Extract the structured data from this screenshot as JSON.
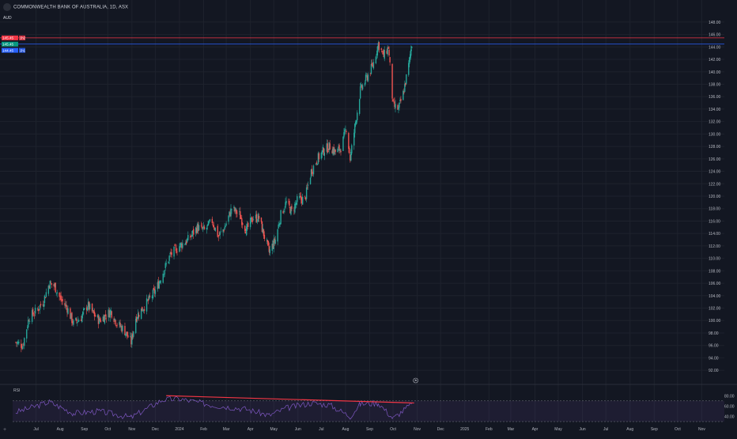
{
  "header": {
    "title": "COMMONWEALTH BANK OF AUSTRALIA, 1D, ASX",
    "currency": "AUD"
  },
  "rsi_label": "RSI",
  "colors": {
    "background": "#131722",
    "up": "#26a69a",
    "down": "#ef5350",
    "rsi_line": "#7e57c2",
    "trendline": "#f23645",
    "hline_red": "#f23645",
    "hline_blue": "#2962ff",
    "price_tag_red": "#f23645",
    "price_tag_green": "#089981",
    "price_tag_blue": "#2962ff"
  },
  "chart_data": [
    {
      "type": "candlestick",
      "title": "COMMONWEALTH BANK OF AUSTRALIA, 1D, ASX",
      "ylabel": "AUD",
      "ylim": [
        91,
        149
      ],
      "y_ticks": [
        92.0,
        94.0,
        96.0,
        98.0,
        100.0,
        102.0,
        104.0,
        106.0,
        108.0,
        110.0,
        112.0,
        114.0,
        116.0,
        118.0,
        120.0,
        122.0,
        124.0,
        126.0,
        128.0,
        130.0,
        132.0,
        134.0,
        136.0,
        138.0,
        140.0,
        142.0,
        144.0,
        146.0,
        148.0
      ],
      "x_labels": [
        "Jul",
        "Aug",
        "Sep",
        "Oct",
        "Nov",
        "Dec",
        "2024",
        "Feb",
        "Mar",
        "Apr",
        "May",
        "Jun",
        "Jul",
        "Aug",
        "Sep",
        "Oct",
        "Nov",
        "Dec",
        "2025",
        "Feb",
        "Mar",
        "Apr",
        "May",
        "Jun",
        "Jul",
        "Aug",
        "Sep",
        "Oct",
        "Nov"
      ],
      "x_range_start": "2023-06-01",
      "x_range_end": "2025-11-30",
      "price_tags": [
        {
          "label": "145.45",
          "value": 145.45,
          "color": "red"
        },
        {
          "label": "145.45",
          "value": 144.45,
          "color": "green"
        },
        {
          "label": "144.45",
          "value": 143.45,
          "color": "blue"
        }
      ],
      "price_tag_suffixes": [
        "1h2",
        "",
        "1h1"
      ],
      "horizontal_lines": [
        {
          "value": 145.45,
          "color": "red"
        },
        {
          "value": 144.45,
          "color": "blue"
        }
      ],
      "close_path": [
        [
          "2023-06-05",
          96.5
        ],
        [
          "2023-06-14",
          96.0
        ],
        [
          "2023-06-22",
          100.5
        ],
        [
          "2023-07-01",
          101.5
        ],
        [
          "2023-07-10",
          103.0
        ],
        [
          "2023-07-18",
          106.0
        ],
        [
          "2023-07-25",
          105.5
        ],
        [
          "2023-08-01",
          103.5
        ],
        [
          "2023-08-10",
          102.0
        ],
        [
          "2023-08-18",
          99.5
        ],
        [
          "2023-08-28",
          100.5
        ],
        [
          "2023-09-05",
          102.5
        ],
        [
          "2023-09-13",
          101.0
        ],
        [
          "2023-09-20",
          100.0
        ],
        [
          "2023-09-28",
          100.8
        ],
        [
          "2023-10-05",
          101.5
        ],
        [
          "2023-10-13",
          99.5
        ],
        [
          "2023-10-22",
          98.5
        ],
        [
          "2023-10-31",
          96.5
        ],
        [
          "2023-11-06",
          100.5
        ],
        [
          "2023-11-15",
          102.0
        ],
        [
          "2023-11-24",
          103.5
        ],
        [
          "2023-12-02",
          105.0
        ],
        [
          "2023-12-10",
          107.5
        ],
        [
          "2023-12-20",
          110.5
        ],
        [
          "2024-01-01",
          112.0
        ],
        [
          "2024-01-12",
          113.0
        ],
        [
          "2024-01-24",
          115.0
        ],
        [
          "2024-02-02",
          114.5
        ],
        [
          "2024-02-12",
          116.0
        ],
        [
          "2024-02-20",
          113.5
        ],
        [
          "2024-02-28",
          115.0
        ],
        [
          "2024-03-08",
          118.0
        ],
        [
          "2024-03-18",
          117.0
        ],
        [
          "2024-03-27",
          114.5
        ],
        [
          "2024-04-04",
          116.5
        ],
        [
          "2024-04-12",
          116.5
        ],
        [
          "2024-04-19",
          113.5
        ],
        [
          "2024-04-25",
          111.0
        ],
        [
          "2024-05-03",
          113.0
        ],
        [
          "2024-05-10",
          117.0
        ],
        [
          "2024-05-17",
          119.0
        ],
        [
          "2024-05-24",
          117.5
        ],
        [
          "2024-06-01",
          119.5
        ],
        [
          "2024-06-10",
          119.5
        ],
        [
          "2024-06-18",
          124.0
        ],
        [
          "2024-06-26",
          126.0
        ],
        [
          "2024-07-05",
          127.5
        ],
        [
          "2024-07-12",
          128.0
        ],
        [
          "2024-07-20",
          127.0
        ],
        [
          "2024-07-27",
          128.0
        ],
        [
          "2024-08-02",
          131.0
        ],
        [
          "2024-08-07",
          126.0
        ],
        [
          "2024-08-14",
          132.0
        ],
        [
          "2024-08-20",
          137.0
        ],
        [
          "2024-08-28",
          139.0
        ],
        [
          "2024-09-05",
          141.0
        ],
        [
          "2024-09-12",
          144.5
        ],
        [
          "2024-09-19",
          142.5
        ],
        [
          "2024-09-25",
          144.0
        ],
        [
          "2024-10-01",
          134.5
        ],
        [
          "2024-10-08",
          134.0
        ],
        [
          "2024-10-14",
          136.5
        ],
        [
          "2024-10-21",
          141.0
        ],
        [
          "2024-10-25",
          144.5
        ]
      ]
    },
    {
      "type": "line",
      "title": "RSI",
      "ylim": [
        30,
        85
      ],
      "y_ticks": [
        40.0,
        60.0,
        80.0
      ],
      "band": [
        30,
        70
      ],
      "x": [
        "2023-06-05",
        "2023-07-01",
        "2023-07-18",
        "2023-08-18",
        "2023-09-20",
        "2023-10-31",
        "2023-12-10",
        "2024-01-01",
        "2024-02-12",
        "2024-03-27",
        "2024-04-25",
        "2024-05-17",
        "2024-06-18",
        "2024-07-12",
        "2024-08-07",
        "2024-08-20",
        "2024-09-12",
        "2024-10-01",
        "2024-10-25"
      ],
      "values": [
        48,
        60,
        68,
        46,
        50,
        38,
        72,
        74,
        62,
        54,
        42,
        56,
        66,
        62,
        40,
        64,
        66,
        36,
        64
      ],
      "trendline": {
        "from": [
          "2023-12-15",
          80
        ],
        "to": [
          "2024-10-28",
          66
        ]
      }
    }
  ]
}
